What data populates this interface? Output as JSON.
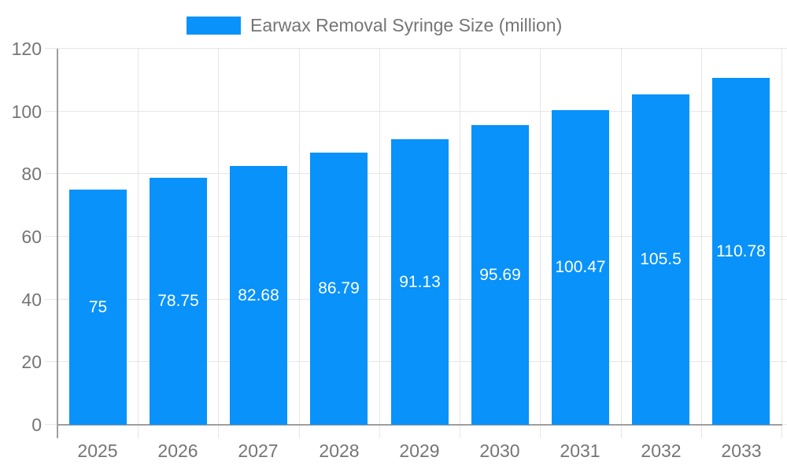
{
  "legend": {
    "label": "Earwax Removal Syringe Size (million)"
  },
  "chart_data": {
    "type": "bar",
    "title": "Earwax Removal Syringe Size (million)",
    "xlabel": "",
    "ylabel": "",
    "categories": [
      "2025",
      "2026",
      "2027",
      "2028",
      "2029",
      "2030",
      "2031",
      "2032",
      "2033"
    ],
    "values": [
      75,
      78.75,
      82.68,
      86.79,
      91.13,
      95.69,
      100.47,
      105.5,
      110.78
    ],
    "data_labels": [
      "75",
      "78.75",
      "82.68",
      "86.79",
      "91.13",
      "95.69",
      "100.47",
      "105.5",
      "110.78"
    ],
    "ylim": [
      0,
      120
    ],
    "yticks": [
      0,
      20,
      40,
      60,
      80,
      100,
      120
    ],
    "grid": true,
    "legend_position": "top-center",
    "colors": {
      "bar": "#0892fa",
      "axis": "#9e9e9e",
      "grid": "#e6e6e6",
      "tick_label": "#757575",
      "legend_text": "#757575",
      "data_label": "#ffffff",
      "background": "#ffffff"
    }
  }
}
